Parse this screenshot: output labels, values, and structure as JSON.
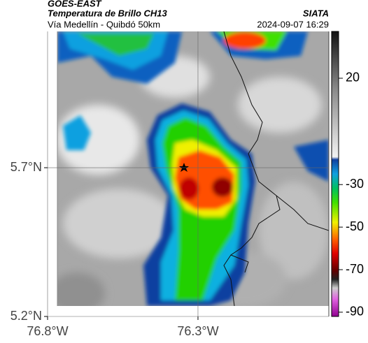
{
  "header": {
    "source": "GOES-EAST",
    "title": "Temperatura de Brillo CH13",
    "subtitle": "Vía Medellín - Quibdó 50km",
    "agency": "SIATA",
    "datetime": "2024-09-07 16:29"
  },
  "map": {
    "xlim": [
      -76.8,
      -75.865
    ],
    "ylim": [
      5.2,
      6.158
    ],
    "xticks": [
      {
        "value": -76.8,
        "label": "76.8°W"
      },
      {
        "value": -76.3,
        "label": "76.3°W"
      }
    ],
    "yticks": [
      {
        "value": 5.2,
        "label": "5.2°N"
      },
      {
        "value": 5.7,
        "label": "5.7°N"
      }
    ]
  },
  "colorbar": {
    "lim": [
      -92,
      42
    ],
    "ticks": [
      20,
      -30,
      -50,
      -70,
      -90
    ]
  }
}
